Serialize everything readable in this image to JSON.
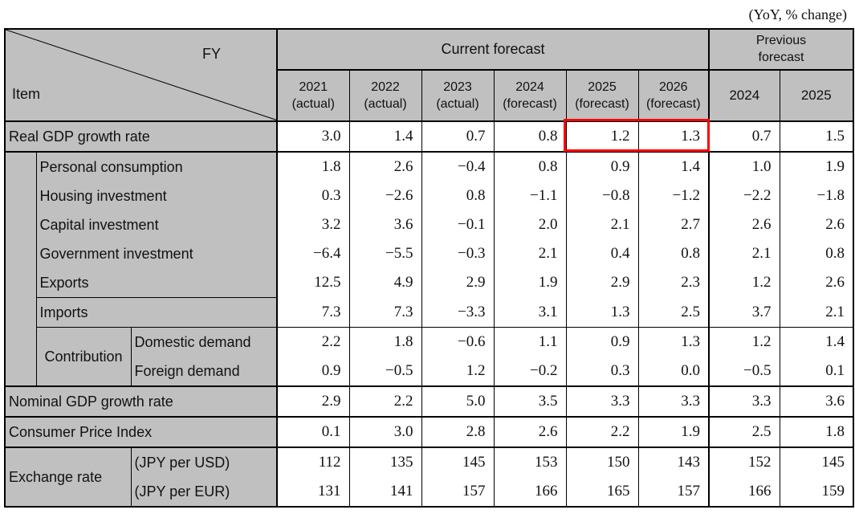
{
  "unit_note": "(YoY, % change)",
  "header": {
    "fy_label": "FY",
    "item_label": "Item",
    "current_forecast": "Current forecast",
    "previous_forecast": "Previous forecast",
    "current_years": [
      {
        "year": "2021",
        "note": "(actual)"
      },
      {
        "year": "2022",
        "note": "(actual)"
      },
      {
        "year": "2023",
        "note": "(actual)"
      },
      {
        "year": "2024",
        "note": "(forecast)"
      },
      {
        "year": "2025",
        "note": "(forecast)"
      },
      {
        "year": "2026",
        "note": "(forecast)"
      }
    ],
    "previous_years": [
      "2024",
      "2025"
    ]
  },
  "rows": [
    {
      "label": "Real GDP growth rate",
      "values": [
        "3.0",
        "1.4",
        "0.7",
        "0.8",
        "1.2",
        "1.3",
        "0.7",
        "1.5"
      ],
      "highlight": [
        4,
        5
      ],
      "highlight_color": "#ff0000"
    },
    {
      "label": "Personal consumption",
      "values": [
        "1.8",
        "2.6",
        "−0.4",
        "0.8",
        "0.9",
        "1.4",
        "1.0",
        "1.9"
      ]
    },
    {
      "label": "Housing investment",
      "values": [
        "0.3",
        "−2.6",
        "0.8",
        "−1.1",
        "−0.8",
        "−1.2",
        "−2.2",
        "−1.8"
      ]
    },
    {
      "label": "Capital investment",
      "values": [
        "3.2",
        "3.6",
        "−0.1",
        "2.0",
        "2.1",
        "2.7",
        "2.6",
        "2.6"
      ]
    },
    {
      "label": "Government investment",
      "values": [
        "−6.4",
        "−5.5",
        "−0.3",
        "2.1",
        "0.4",
        "0.8",
        "2.1",
        "0.8"
      ]
    },
    {
      "label": "Exports",
      "values": [
        "12.5",
        "4.9",
        "2.9",
        "1.9",
        "2.9",
        "2.3",
        "1.2",
        "2.6"
      ]
    },
    {
      "label": "Imports",
      "values": [
        "7.3",
        "7.3",
        "−3.3",
        "3.1",
        "1.3",
        "2.5",
        "3.7",
        "2.1"
      ]
    },
    {
      "group": "Contribution",
      "label": "Domestic demand",
      "values": [
        "2.2",
        "1.8",
        "−0.6",
        "1.1",
        "0.9",
        "1.3",
        "1.2",
        "1.4"
      ]
    },
    {
      "group": "Contribution",
      "label": "Foreign demand",
      "values": [
        "0.9",
        "−0.5",
        "1.2",
        "−0.2",
        "0.3",
        "0.0",
        "−0.5",
        "0.1"
      ]
    },
    {
      "label": "Nominal GDP growth rate",
      "values": [
        "2.9",
        "2.2",
        "5.0",
        "3.5",
        "3.3",
        "3.3",
        "3.3",
        "3.6"
      ]
    },
    {
      "label": "Consumer Price Index",
      "values": [
        "0.1",
        "3.0",
        "2.8",
        "2.6",
        "2.2",
        "1.9",
        "2.5",
        "1.8"
      ]
    },
    {
      "group": "Exchange rate",
      "label": "(JPY per USD)",
      "values": [
        "112",
        "135",
        "145",
        "153",
        "150",
        "143",
        "152",
        "145"
      ]
    },
    {
      "group": "Exchange rate",
      "label": "(JPY per EUR)",
      "values": [
        "131",
        "141",
        "157",
        "166",
        "165",
        "157",
        "166",
        "159"
      ]
    }
  ],
  "colors": {
    "label_bg": "#c0c0c0",
    "data_bg": "#ffffff",
    "highlight": "#ff0000"
  }
}
